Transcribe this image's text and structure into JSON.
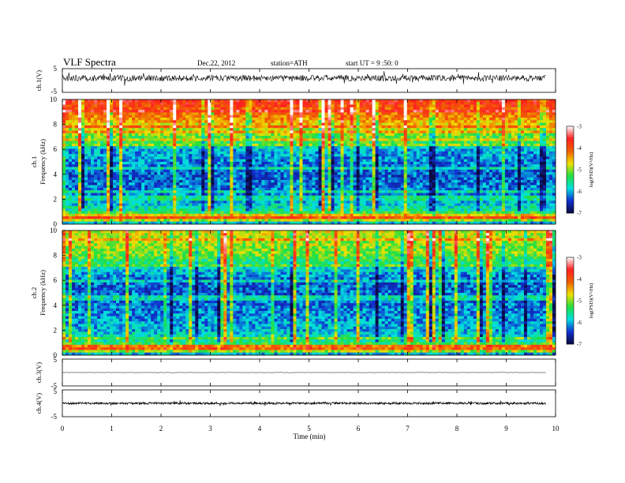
{
  "header": {
    "title": "VLF  Spectra",
    "date": "Dec.22, 2012",
    "station": "station=ATH",
    "start": "start  UT =   9 :50: 0"
  },
  "chart_data": [
    {
      "type": "line",
      "name": "ch.1 waveform",
      "ylabel": "ch.1(V)",
      "ylim": [
        -5,
        5
      ],
      "y_ticks": [
        "5",
        "-5"
      ],
      "x_range": [
        0,
        9.8
      ],
      "description_values": {
        "baseline_v": 1.0,
        "noise_amplitude_v": 1.3
      }
    },
    {
      "type": "heatmap",
      "name": "ch.1 spectrogram",
      "ylabel": "ch.1\nFrequency (kHz)",
      "ylabel_lines": [
        "ch.1",
        "Frequency (kHz)"
      ],
      "ylim": [
        0,
        10
      ],
      "y_ticks": [
        "0",
        "2",
        "4",
        "6",
        "8",
        "10"
      ],
      "x_range": [
        0,
        9.8
      ],
      "colorbar": {
        "label": "log(PSD)(V²/Hz)",
        "range": [
          -7,
          -3
        ],
        "ticks": [
          "-3",
          "-4",
          "-5",
          "-6",
          "-7"
        ]
      },
      "frequency_profile_log_psd": [
        {
          "f_khz": 0.0,
          "v": -6.5
        },
        {
          "f_khz": 0.5,
          "v": -3.9
        },
        {
          "f_khz": 1.0,
          "v": -5.5
        },
        {
          "f_khz": 2.0,
          "v": -6.1
        },
        {
          "f_khz": 4.0,
          "v": -6.3
        },
        {
          "f_khz": 6.0,
          "v": -6.0
        },
        {
          "f_khz": 6.5,
          "v": -5.3
        },
        {
          "f_khz": 7.5,
          "v": -4.9
        },
        {
          "f_khz": 8.5,
          "v": -4.3
        },
        {
          "f_khz": 10.0,
          "v": -3.7
        }
      ]
    },
    {
      "type": "heatmap",
      "name": "ch.2 spectrogram",
      "ylabel": "ch.2\nFrequency (kHz)",
      "ylabel_lines": [
        "ch.2",
        "Frequency (kHz)"
      ],
      "ylim": [
        0,
        10
      ],
      "y_ticks": [
        "0",
        "2",
        "4",
        "6",
        "8",
        "10"
      ],
      "x_range": [
        0,
        9.8
      ],
      "colorbar": {
        "label": "log(PSD)(V²/Hz)",
        "range": [
          -7,
          -3
        ],
        "ticks": [
          "-3",
          "-4",
          "-5",
          "-6",
          "-7"
        ]
      },
      "frequency_profile_log_psd": [
        {
          "f_khz": 0.0,
          "v": -6.5
        },
        {
          "f_khz": 0.5,
          "v": -4.0
        },
        {
          "f_khz": 1.0,
          "v": -5.5
        },
        {
          "f_khz": 2.0,
          "v": -6.0
        },
        {
          "f_khz": 4.0,
          "v": -6.2
        },
        {
          "f_khz": 6.0,
          "v": -6.3
        },
        {
          "f_khz": 7.0,
          "v": -5.8
        },
        {
          "f_khz": 8.0,
          "v": -5.1
        },
        {
          "f_khz": 10.0,
          "v": -4.8
        }
      ]
    },
    {
      "type": "line",
      "name": "ch.3 waveform",
      "ylabel": "ch.3(V)",
      "ylim": [
        -5,
        5
      ],
      "y_ticks": [
        "5",
        "-5"
      ],
      "x_range": [
        0,
        9.8
      ],
      "description_values": {
        "baseline_v": 0.0,
        "noise_amplitude_v": 0.05
      }
    },
    {
      "type": "line",
      "name": "ch.4 waveform",
      "ylabel": "ch.4(V)",
      "ylim": [
        -5,
        5
      ],
      "y_ticks": [
        "5",
        "-5"
      ],
      "x_range": [
        0,
        9.8
      ],
      "description_values": {
        "baseline_v": 0.0,
        "noise_amplitude_v": 0.4
      }
    }
  ],
  "x_axis": {
    "label": "Time  (min)",
    "ticks": [
      "0",
      "1",
      "2",
      "3",
      "4",
      "5",
      "6",
      "7",
      "8",
      "9",
      "10"
    ],
    "range": [
      0,
      10
    ]
  },
  "colors": {
    "colormap": [
      "#0a0a40",
      "#1030d0",
      "#00e0e0",
      "#20e040",
      "#f0e000",
      "#f06000",
      "#ff2020",
      "#ffffff"
    ]
  }
}
